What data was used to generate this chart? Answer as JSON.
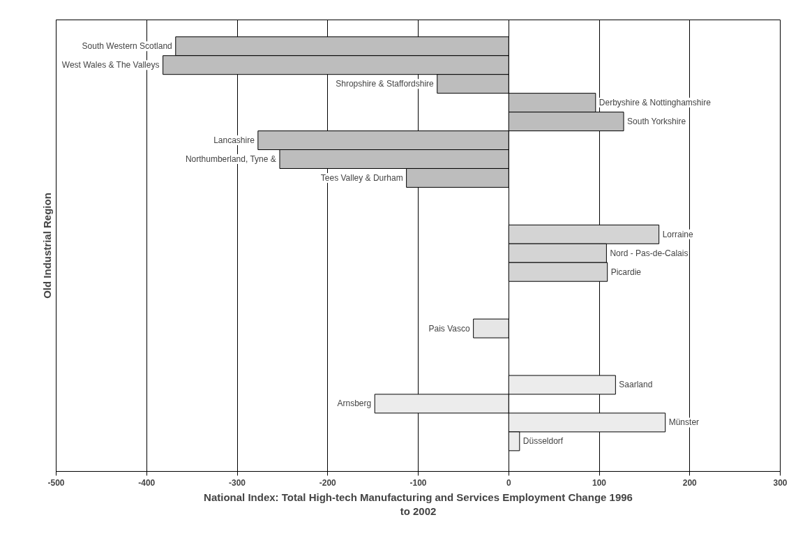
{
  "chart_data": {
    "type": "bar",
    "orientation": "horizontal",
    "xlabel": "National Index: Total High-tech Manufacturing and Services Employment Change 1996 to 2002",
    "ylabel": "Old Industrial Region",
    "categories": [
      "South Western Scotland",
      "West Wales & The Valleys",
      "Shropshire & Staffordshire",
      "Derbyshire & Nottinghamshire",
      "South Yorkshire",
      "Lancashire",
      "Northumberland, Tyne &",
      "Tees Valley & Durham",
      null,
      null,
      "Lorraine",
      "Nord - Pas-de-Calais",
      "Picardie",
      null,
      null,
      "Pais Vasco",
      null,
      null,
      "Saarland",
      "Arnsberg",
      "Münster",
      "Düsseldorf"
    ],
    "values": [
      -368,
      -382,
      -79,
      96,
      127,
      -277,
      -253,
      -113,
      null,
      null,
      166,
      108,
      109,
      null,
      null,
      -39,
      null,
      null,
      118,
      -148,
      173,
      12
    ],
    "colors": [
      "#bdbdbd",
      "#bdbdbd",
      "#bdbdbd",
      "#bdbdbd",
      "#bdbdbd",
      "#bdbdbd",
      "#bdbdbd",
      "#bdbdbd",
      null,
      null,
      "#d4d4d4",
      "#d4d4d4",
      "#d4d4d4",
      null,
      null,
      "#e6e6e6",
      null,
      null,
      "#ececec",
      "#ececec",
      "#ececec",
      "#ececec"
    ],
    "xlim": [
      -500,
      300
    ],
    "xticks": [
      -500,
      -400,
      -300,
      -200,
      -100,
      0,
      100,
      200,
      300
    ],
    "grid": "x",
    "tick_labels": "x"
  }
}
